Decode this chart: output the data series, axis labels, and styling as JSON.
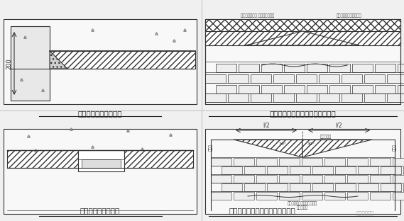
{
  "bg_color": "#f0f0f0",
  "title1": "斜砌端部预制三角砖块",
  "title2": "斜砌中部预制三角砖块（方法一）",
  "title3": "斜砌管线部位的节点",
  "title4": "斜砌中部预制三角砖块（方法二）",
  "watermark": "鸿工工程管理",
  "annotation_top_left": "中间采用高配二 块成品三角砖块",
  "annotation_top_right": "砖墙置量上下墙面和墙皮",
  "annotation_dim_l2_left": "l/2",
  "annotation_dim_l2_right": "l/2",
  "annotation_30left": "30°",
  "annotation_30right": "30°",
  "annotation_prefab": "预制三角砖",
  "annotation_left_label": "墙处品",
  "annotation_right_label": "墙三砖",
  "annotation_dim_200": "200",
  "panel_bg": "#ffffff",
  "hatch_color": "#555555",
  "line_color": "#333333",
  "text_color": "#333333",
  "subtitle_color": "#222222"
}
